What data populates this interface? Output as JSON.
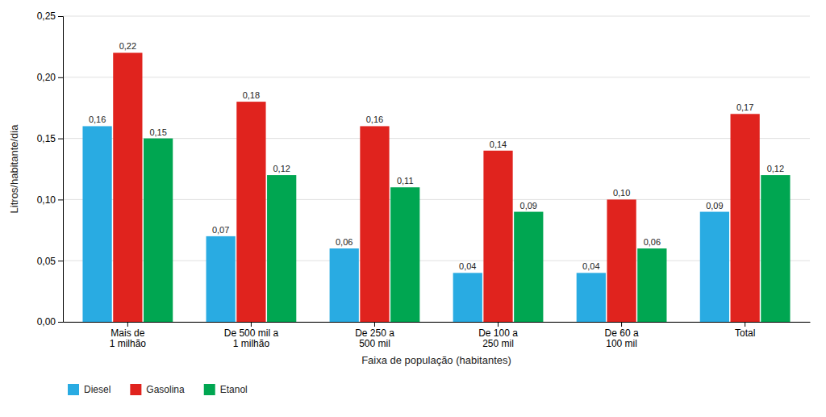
{
  "chart_data": {
    "type": "bar",
    "categories": [
      "Mais de\n1 milhão",
      "De 500 mil a\n1 milhão",
      "De 250 a\n500 mil",
      "De 100 a\n250 mil",
      "De 60 a\n100 mil",
      "Total"
    ],
    "series": [
      {
        "name": "Diesel",
        "color": "#29ABE2",
        "values": [
          0.16,
          0.07,
          0.06,
          0.04,
          0.04,
          0.09
        ],
        "value_labels": [
          "0,16",
          "0,07",
          "0,06",
          "0,04",
          "0,04",
          "0,09"
        ]
      },
      {
        "name": "Gasolina",
        "color": "#E0231E",
        "values": [
          0.22,
          0.18,
          0.16,
          0.14,
          0.1,
          0.17
        ],
        "value_labels": [
          "0,22",
          "0,18",
          "0,16",
          "0,14",
          "0,10",
          "0,17"
        ]
      },
      {
        "name": "Etanol",
        "color": "#00A651",
        "values": [
          0.15,
          0.12,
          0.11,
          0.09,
          0.06,
          0.12
        ],
        "value_labels": [
          "0,15",
          "0,12",
          "0,11",
          "0,09",
          "0,06",
          "0,12"
        ]
      }
    ],
    "x_label": "Faixa de população (habitantes)",
    "y_label": "Litros/habitante/dia",
    "ylim": [
      0,
      0.25
    ],
    "yticks": [
      {
        "value": 0.0,
        "label": "0,00"
      },
      {
        "value": 0.05,
        "label": "0,05"
      },
      {
        "value": 0.1,
        "label": "0,10"
      },
      {
        "value": 0.15,
        "label": "0,15"
      },
      {
        "value": 0.2,
        "label": "0,20"
      },
      {
        "value": 0.25,
        "label": "0,25"
      }
    ],
    "grid": true,
    "legend": "bottom-left",
    "data_labels": true
  }
}
